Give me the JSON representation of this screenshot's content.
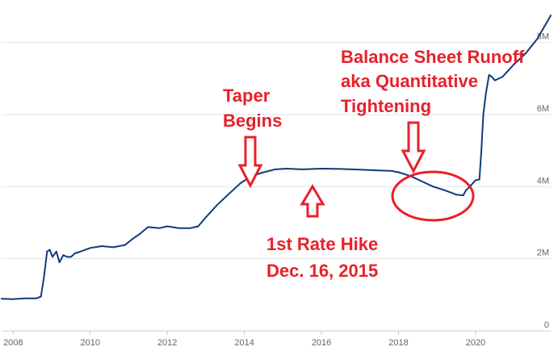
{
  "colors": {
    "line": "#0d3c78",
    "grid": "#e2e2e2",
    "axis": "#cccccc",
    "tick_text": "#666666",
    "annotation": "#e8202a"
  },
  "chart_data": {
    "type": "line",
    "title": "",
    "xlabel": "",
    "ylabel": "",
    "xlim": [
      2007.7,
      2021.95
    ],
    "ylim": [
      0,
      9000000
    ],
    "grid": true,
    "legend": "none",
    "x_ticks": [
      {
        "value": 2008,
        "label": "2008"
      },
      {
        "value": 2010,
        "label": "2010"
      },
      {
        "value": 2012,
        "label": "2012"
      },
      {
        "value": 2014,
        "label": "2014"
      },
      {
        "value": 2016,
        "label": "2016"
      },
      {
        "value": 2018,
        "label": "2018"
      },
      {
        "value": 2020,
        "label": "2020"
      }
    ],
    "y_ticks": [
      {
        "value": 0,
        "label": "0"
      },
      {
        "value": 2000000,
        "label": "2M"
      },
      {
        "value": 4000000,
        "label": "4M"
      },
      {
        "value": 6000000,
        "label": "6M"
      },
      {
        "value": 8000000,
        "label": "8M"
      }
    ],
    "series": [
      {
        "x": [
          2007.7,
          2008.0,
          2008.3,
          2008.6,
          2008.72,
          2008.8,
          2008.88,
          2008.95,
          2009.02,
          2009.12,
          2009.2,
          2009.3,
          2009.4,
          2009.5,
          2009.6,
          2009.75,
          2010.0,
          2010.3,
          2010.6,
          2010.9,
          2011.1,
          2011.3,
          2011.5,
          2011.8,
          2012.0,
          2012.3,
          2012.6,
          2012.8,
          2013.0,
          2013.3,
          2013.6,
          2013.9,
          2014.2,
          2014.5,
          2014.8,
          2015.1,
          2015.5,
          2016.0,
          2016.5,
          2017.0,
          2017.5,
          2017.8,
          2018.0,
          2018.3,
          2018.6,
          2018.9,
          2019.2,
          2019.5,
          2019.68,
          2019.75,
          2019.85,
          2020.0,
          2020.1,
          2020.15,
          2020.2,
          2020.27,
          2020.35,
          2020.42,
          2020.5,
          2020.7,
          2021.0,
          2021.3,
          2021.6,
          2021.95
        ],
        "y": [
          890000,
          880000,
          900000,
          900000,
          950000,
          1500000,
          2200000,
          2250000,
          2050000,
          2200000,
          1900000,
          2100000,
          2050000,
          2050000,
          2150000,
          2200000,
          2300000,
          2350000,
          2320000,
          2380000,
          2550000,
          2700000,
          2880000,
          2850000,
          2900000,
          2850000,
          2850000,
          2900000,
          3150000,
          3500000,
          3800000,
          4100000,
          4300000,
          4400000,
          4480000,
          4500000,
          4480000,
          4500000,
          4490000,
          4470000,
          4450000,
          4440000,
          4400000,
          4300000,
          4150000,
          4000000,
          3900000,
          3780000,
          3760000,
          3900000,
          4000000,
          4180000,
          4200000,
          5000000,
          6000000,
          6600000,
          7100000,
          7050000,
          6950000,
          7050000,
          7400000,
          7700000,
          8100000,
          8750000
        ]
      }
    ],
    "annotations": [
      {
        "text": "Balance Sheet Runoff"
      },
      {
        "text": "aka Quantitative"
      },
      {
        "text": "Tightening"
      },
      {
        "text": "Taper"
      },
      {
        "text": "Begins"
      },
      {
        "text": "1st Rate Hike"
      },
      {
        "text": "Dec. 16, 2015"
      }
    ]
  }
}
